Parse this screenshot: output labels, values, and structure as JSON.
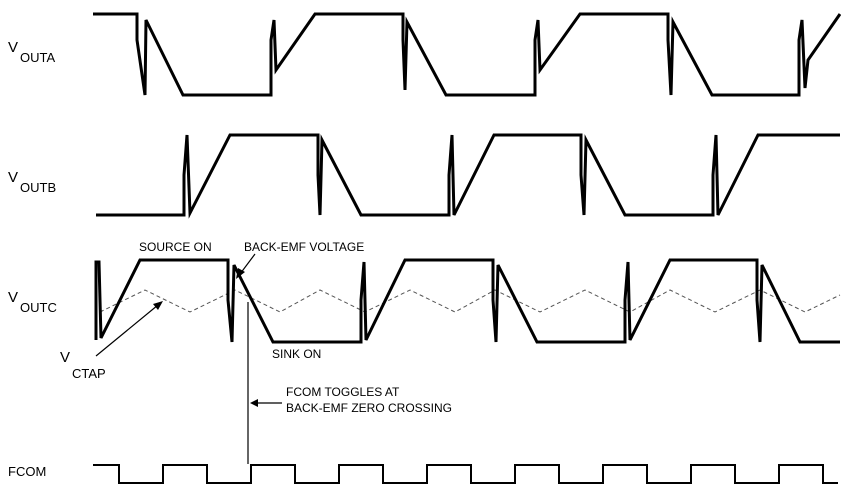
{
  "signals": {
    "outa": {
      "main": "V",
      "sub": "OUTA"
    },
    "outb": {
      "main": "V",
      "sub": "OUTB"
    },
    "outc": {
      "main": "V",
      "sub": "OUTC"
    },
    "ctap": {
      "main": "V",
      "sub": "CTAP"
    },
    "fcom": {
      "label": "FCOM"
    }
  },
  "annotations": {
    "source_on": "SOURCE ON",
    "back_emf_voltage": "BACK-EMF VOLTAGE",
    "sink_on": "SINK ON",
    "fcom_toggle_line1": "FCOM TOGGLES AT",
    "fcom_toggle_line2": "BACK-EMF ZERO CROSSING"
  }
}
